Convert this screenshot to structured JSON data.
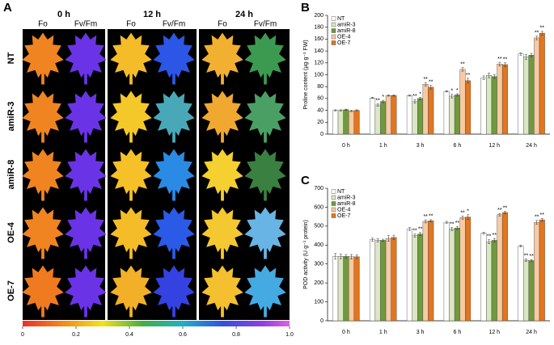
{
  "panel_a": {
    "label": "A",
    "times": [
      "0 h",
      "12 h",
      "24 h"
    ],
    "params": [
      "Fo",
      "Fv/Fm",
      "Fo",
      "Fv/Fm",
      "Fo",
      "Fv/Fm"
    ],
    "lines": [
      "NT",
      "amiR-3",
      "amiR-8",
      "OE-4",
      "OE-7"
    ],
    "colorbar": {
      "lim": [
        0,
        1
      ],
      "ticks": [
        0,
        0.2,
        0.4,
        0.6,
        0.8,
        {
          "value": 1,
          "label": "1.0"
        }
      ]
    }
  },
  "chart_data": [
    {
      "type": "bar",
      "panel_label": "B",
      "ylabel": "Proline content (μg·g⁻¹ FW)",
      "categories": [
        "0 h",
        "1 h",
        "3 h",
        "6 h",
        "12 h",
        "24 h"
      ],
      "series": [
        {
          "name": "NT",
          "color": "#ffffff",
          "values": [
            40,
            61,
            65,
            72,
            95,
            135
          ],
          "errors": [
            1,
            1,
            1,
            1,
            3,
            2
          ],
          "significance": [
            null,
            null,
            null,
            null,
            null,
            null
          ]
        },
        {
          "name": "amiR-3",
          "color": "#dbe6c4",
          "values": [
            40,
            49,
            55,
            64,
            99,
            130
          ],
          "errors": [
            1,
            2,
            3,
            3,
            4,
            4
          ],
          "significance": [
            null,
            "**",
            "**",
            "*",
            null,
            null
          ]
        },
        {
          "name": "amiR-8",
          "color": "#6e9a3c",
          "values": [
            41,
            55,
            60,
            66,
            97,
            133
          ],
          "errors": [
            1,
            2,
            2,
            2,
            3,
            3
          ],
          "significance": [
            null,
            "*",
            "*",
            "*",
            null,
            null
          ]
        },
        {
          "name": "OE-4",
          "color": "#f7c9a4",
          "values": [
            39,
            65,
            84,
            109,
            118,
            162
          ],
          "errors": [
            1,
            1,
            3,
            3,
            3,
            3
          ],
          "significance": [
            null,
            null,
            "**",
            "**",
            "**",
            "**"
          ]
        },
        {
          "name": "OE-7",
          "color": "#e2761e",
          "values": [
            40,
            65,
            79,
            90,
            117,
            170
          ],
          "errors": [
            1,
            1,
            3,
            4,
            3,
            3
          ],
          "significance": [
            null,
            null,
            "**",
            "**",
            "**",
            "**"
          ]
        }
      ],
      "ylim": [
        0,
        200
      ],
      "yticks": [
        0,
        20,
        40,
        60,
        80,
        100,
        120,
        140,
        160,
        180,
        200
      ],
      "legend": "upper left"
    },
    {
      "type": "bar",
      "panel_label": "C",
      "ylabel": "POD activity (U·g⁻¹ protein)",
      "categories": [
        "0 h",
        "1 h",
        "3 h",
        "6 h",
        "12 h",
        "24 h"
      ],
      "series": [
        {
          "name": "NT",
          "color": "#ffffff",
          "values": [
            340,
            428,
            485,
            520,
            462,
            395
          ],
          "errors": [
            15,
            8,
            8,
            5,
            5,
            5
          ],
          "significance": [
            null,
            null,
            null,
            null,
            null,
            null
          ]
        },
        {
          "name": "amiR-3",
          "color": "#dbe6c4",
          "values": [
            340,
            425,
            450,
            485,
            418,
            320
          ],
          "errors": [
            12,
            8,
            8,
            8,
            10,
            6
          ],
          "significance": [
            null,
            null,
            "**",
            "**",
            "**",
            "**"
          ]
        },
        {
          "name": "amiR-8",
          "color": "#6e9a3c",
          "values": [
            340,
            425,
            458,
            490,
            425,
            318
          ],
          "errors": [
            10,
            6,
            8,
            8,
            10,
            6
          ],
          "significance": [
            null,
            null,
            "**",
            "**",
            "**",
            "**"
          ]
        },
        {
          "name": "OE-4",
          "color": "#f7c9a4",
          "values": [
            338,
            435,
            525,
            545,
            560,
            520
          ],
          "errors": [
            12,
            15,
            8,
            8,
            6,
            10
          ],
          "significance": [
            null,
            null,
            "**",
            "**",
            "**",
            "**"
          ]
        },
        {
          "name": "OE-7",
          "color": "#e2761e",
          "values": [
            338,
            440,
            528,
            548,
            572,
            533
          ],
          "errors": [
            10,
            12,
            6,
            12,
            6,
            8
          ],
          "significance": [
            null,
            null,
            "**",
            "*",
            "**",
            "**"
          ]
        }
      ],
      "ylim": [
        0,
        700
      ],
      "yticks": [
        0,
        100,
        200,
        300,
        400,
        500,
        600,
        700
      ],
      "legend": "upper left"
    }
  ]
}
